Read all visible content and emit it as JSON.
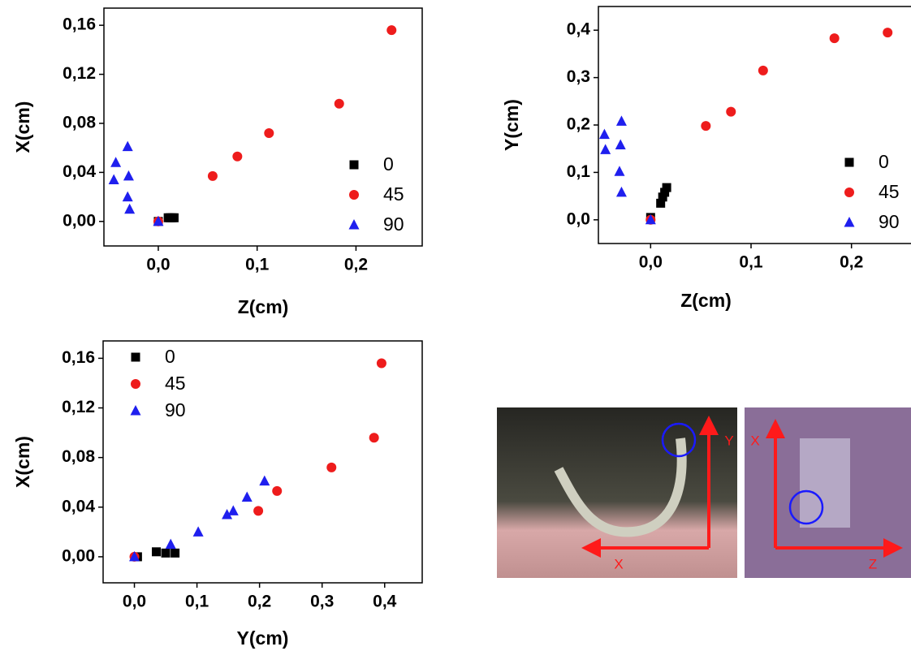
{
  "chart_data": [
    {
      "type": "scatter",
      "x_label": "Z(cm)",
      "y_label": "X(cm)",
      "xlim": [
        -0.055,
        0.267
      ],
      "ylim": [
        -0.02,
        0.174
      ],
      "xticks": [
        {
          "value": 0.0,
          "label": "0,0"
        },
        {
          "value": 0.1,
          "label": "0,1"
        },
        {
          "value": 0.2,
          "label": "0,2"
        }
      ],
      "yticks": [
        {
          "value": 0.0,
          "label": "0,00"
        },
        {
          "value": 0.04,
          "label": "0,04"
        },
        {
          "value": 0.08,
          "label": "0,08"
        },
        {
          "value": 0.12,
          "label": "0,12"
        },
        {
          "value": 0.16,
          "label": "0,16"
        }
      ],
      "legend": "lower right",
      "series": [
        {
          "name": "0",
          "color": "#000000",
          "marker": "square",
          "x": [
            0.0,
            0.01,
            0.012,
            0.014,
            0.016
          ],
          "values": [
            0.0,
            0.003,
            0.003,
            0.003,
            0.003
          ]
        },
        {
          "name": "45",
          "color": "#ee1c1c",
          "marker": "circle",
          "x": [
            0.0,
            0.055,
            0.08,
            0.112,
            0.183,
            0.236
          ],
          "values": [
            0.0,
            0.037,
            0.053,
            0.072,
            0.096,
            0.156
          ]
        },
        {
          "name": "90",
          "color": "#1f1fee",
          "marker": "triangle",
          "x": [
            0.0,
            -0.029,
            -0.031,
            -0.045,
            -0.03,
            -0.043,
            -0.031
          ],
          "values": [
            0.0,
            0.01,
            0.02,
            0.034,
            0.037,
            0.048,
            0.061
          ]
        }
      ]
    },
    {
      "type": "scatter",
      "x_label": "Z(cm)",
      "y_label": "Y(cm)",
      "xlim": [
        -0.052,
        0.29
      ],
      "ylim": [
        -0.05,
        0.45
      ],
      "xticks": [
        {
          "value": 0.0,
          "label": "0,0"
        },
        {
          "value": 0.1,
          "label": "0,1"
        },
        {
          "value": 0.2,
          "label": "0,2"
        }
      ],
      "yticks": [
        {
          "value": 0.0,
          "label": "0,0"
        },
        {
          "value": 0.1,
          "label": "0,1"
        },
        {
          "value": 0.2,
          "label": "0,2"
        },
        {
          "value": 0.3,
          "label": "0,3"
        },
        {
          "value": 0.4,
          "label": "0,4"
        }
      ],
      "legend": "lower right",
      "series": [
        {
          "name": "0",
          "color": "#000000",
          "marker": "square",
          "x": [
            0.0,
            0.01,
            0.012,
            0.014,
            0.016
          ],
          "values": [
            0.005,
            0.035,
            0.048,
            0.058,
            0.068
          ]
        },
        {
          "name": "45",
          "color": "#ee1c1c",
          "marker": "circle",
          "x": [
            0.0,
            0.055,
            0.08,
            0.112,
            0.183,
            0.236
          ],
          "values": [
            0.0,
            0.198,
            0.228,
            0.315,
            0.383,
            0.395
          ]
        },
        {
          "name": "90",
          "color": "#1f1fee",
          "marker": "triangle",
          "x": [
            0.0,
            -0.029,
            -0.031,
            -0.045,
            -0.03,
            -0.046,
            -0.029
          ],
          "values": [
            0.0,
            0.058,
            0.102,
            0.148,
            0.158,
            0.18,
            0.208
          ]
        }
      ]
    },
    {
      "type": "scatter",
      "x_label": "Y(cm)",
      "y_label": "X(cm)",
      "xlim": [
        -0.05,
        0.46
      ],
      "ylim": [
        -0.021,
        0.174
      ],
      "xticks": [
        {
          "value": 0.0,
          "label": "0,0"
        },
        {
          "value": 0.1,
          "label": "0,1"
        },
        {
          "value": 0.2,
          "label": "0,2"
        },
        {
          "value": 0.3,
          "label": "0,3"
        },
        {
          "value": 0.4,
          "label": "0,4"
        }
      ],
      "yticks": [
        {
          "value": 0.0,
          "label": "0,00"
        },
        {
          "value": 0.04,
          "label": "0,04"
        },
        {
          "value": 0.08,
          "label": "0,08"
        },
        {
          "value": 0.12,
          "label": "0,12"
        },
        {
          "value": 0.16,
          "label": "0,16"
        }
      ],
      "legend": "upper left",
      "series": [
        {
          "name": "0",
          "color": "#000000",
          "marker": "square",
          "x": [
            0.005,
            0.035,
            0.05,
            0.065
          ],
          "values": [
            0.0,
            0.004,
            0.003,
            0.003
          ]
        },
        {
          "name": "45",
          "color": "#ee1c1c",
          "marker": "circle",
          "x": [
            0.0,
            0.198,
            0.228,
            0.315,
            0.383,
            0.395
          ],
          "values": [
            0.0,
            0.037,
            0.053,
            0.072,
            0.096,
            0.156
          ]
        },
        {
          "name": "90",
          "color": "#1f1fee",
          "marker": "triangle",
          "x": [
            0.0,
            0.058,
            0.102,
            0.148,
            0.158,
            0.18,
            0.208
          ],
          "values": [
            0.0,
            0.01,
            0.02,
            0.034,
            0.037,
            0.048,
            0.061
          ]
        }
      ]
    }
  ],
  "photo_labels": {
    "side_view": [
      "Y",
      "X"
    ],
    "top_view": [
      "X",
      "Z"
    ]
  }
}
